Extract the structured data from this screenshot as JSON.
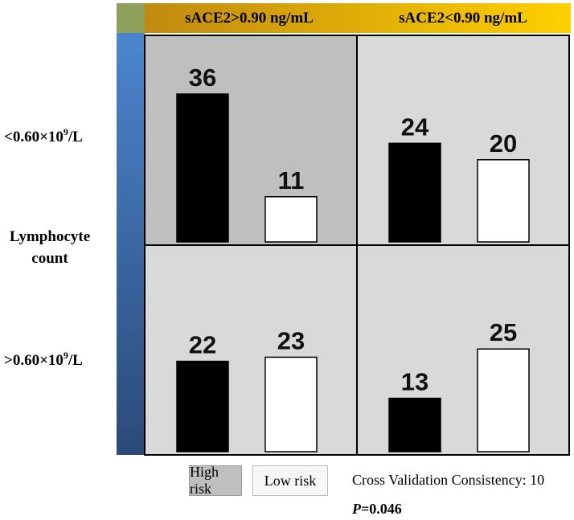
{
  "chart_data": {
    "type": "bar",
    "columns": [
      "sACE2>0.90 ng/mL",
      "sACE2<0.90 ng/mL"
    ],
    "rows": [
      {
        "label_main": "<0.60×10",
        "label_sup": "9",
        "label_unit": "/L"
      },
      {
        "label_main": ">0.60×10",
        "label_sup": "9",
        "label_unit": "/L"
      }
    ],
    "row_axis_title": [
      "Lymphocyte",
      "count"
    ],
    "series": [
      {
        "name": "High risk",
        "color": "#000000"
      },
      {
        "name": "Low risk",
        "color": "#ffffff"
      }
    ],
    "cells": [
      {
        "row": 0,
        "col": 0,
        "values": [
          36,
          11
        ]
      },
      {
        "row": 0,
        "col": 1,
        "values": [
          24,
          20
        ]
      },
      {
        "row": 1,
        "col": 0,
        "values": [
          22,
          23
        ]
      },
      {
        "row": 1,
        "col": 1,
        "values": [
          13,
          25
        ]
      }
    ],
    "ylim": [
      0,
      45
    ],
    "highlight_cell": {
      "row": 0,
      "col": 0,
      "color": "#bfbfbf"
    },
    "cell_background": "#d9d9d9",
    "header_gradient": [
      "#c08a10",
      "#ffd000"
    ],
    "side_gradient": [
      "#4a86cf",
      "#2b4a78"
    ],
    "corner_color": "#8fa05a",
    "legend": {
      "high": "High risk",
      "low": "Low risk"
    },
    "consistency_text": "Cross Validation Consistency: 10",
    "p_label": "P",
    "p_value": "=0.046"
  }
}
